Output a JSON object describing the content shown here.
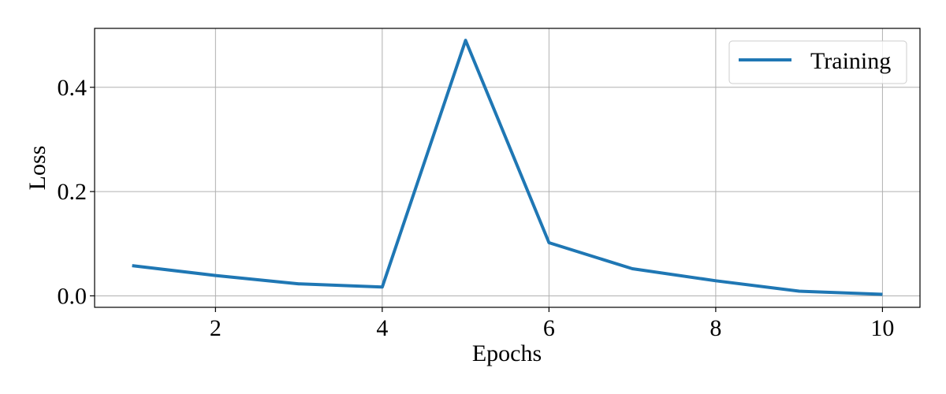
{
  "chart_data": {
    "type": "line",
    "xlabel": "Epochs",
    "ylabel": "Loss",
    "xlim": [
      0.55,
      10.45
    ],
    "ylim": [
      -0.022,
      0.513
    ],
    "x_ticks": [
      2,
      4,
      6,
      8,
      10
    ],
    "x_tick_labels": [
      "2",
      "4",
      "6",
      "8",
      "10"
    ],
    "y_ticks": [
      0.0,
      0.2,
      0.4
    ],
    "y_tick_labels": [
      "0.0",
      "0.2",
      "0.4"
    ],
    "grid": true,
    "legend_position": "top-right",
    "series": [
      {
        "name": "Training",
        "color": "#1f77b4",
        "x": [
          1,
          2,
          3,
          4,
          5,
          6,
          7,
          8,
          9,
          10
        ],
        "values": [
          0.058,
          0.039,
          0.023,
          0.017,
          0.49,
          0.102,
          0.052,
          0.029,
          0.009,
          0.003
        ]
      }
    ]
  }
}
